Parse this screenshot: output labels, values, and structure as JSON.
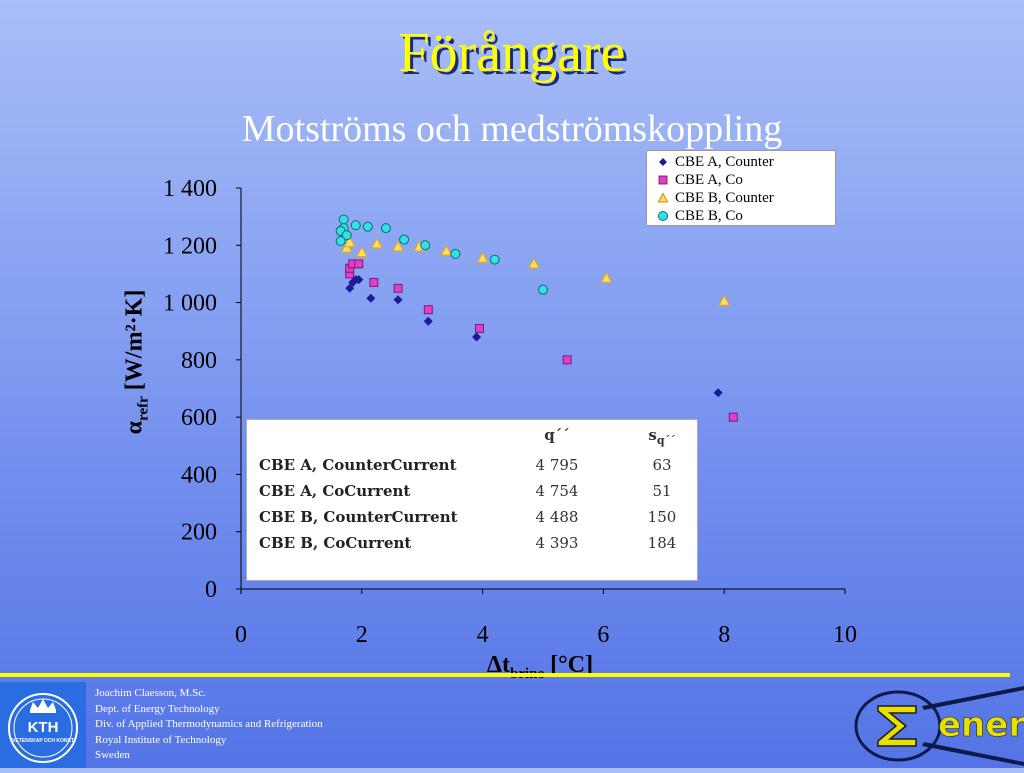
{
  "title": "Förångare",
  "subtitle": "Motströms och medströmskoppling",
  "chart_data": {
    "type": "scatter",
    "xlim": [
      0,
      10
    ],
    "ylim": [
      0,
      1400
    ],
    "xticks": [
      "0",
      "2",
      "4",
      "6",
      "8",
      "10"
    ],
    "yticks": [
      "0",
      "200",
      "400",
      "600",
      "800",
      "1 000",
      "1 200",
      "1 400"
    ],
    "xlabel_main": "Δt",
    "xlabel_sub": "brine",
    "xlabel_unit": " [°C]",
    "ylabel_main": "α",
    "ylabel_sub": "refr",
    "ylabel_unit": " [W/m²·K]",
    "legend_position": "top-right",
    "series": [
      {
        "name": "CBE A, Counter",
        "marker": "diamond",
        "color": "#1a1a9c",
        "points": [
          [
            1.8,
            1050
          ],
          [
            1.85,
            1070
          ],
          [
            1.9,
            1080
          ],
          [
            1.95,
            1080
          ],
          [
            2.15,
            1015
          ],
          [
            2.6,
            1010
          ],
          [
            3.1,
            935
          ],
          [
            3.9,
            880
          ],
          [
            5.4,
            800
          ],
          [
            7.9,
            685
          ]
        ]
      },
      {
        "name": "CBE A, Co",
        "marker": "square",
        "color": "#e040c8",
        "points": [
          [
            1.8,
            1100
          ],
          [
            1.8,
            1120
          ],
          [
            1.85,
            1135
          ],
          [
            1.95,
            1135
          ],
          [
            2.2,
            1070
          ],
          [
            2.6,
            1050
          ],
          [
            3.1,
            975
          ],
          [
            3.95,
            910
          ],
          [
            5.4,
            800
          ],
          [
            8.15,
            600
          ]
        ]
      },
      {
        "name": "CBE B, Counter",
        "marker": "triangle",
        "color": "#f2a800",
        "points": [
          [
            1.75,
            1190
          ],
          [
            1.8,
            1210
          ],
          [
            2.0,
            1175
          ],
          [
            2.25,
            1205
          ],
          [
            2.6,
            1195
          ],
          [
            2.95,
            1195
          ],
          [
            3.4,
            1180
          ],
          [
            4.0,
            1155
          ],
          [
            4.85,
            1135
          ],
          [
            6.05,
            1085
          ],
          [
            8.0,
            1005
          ]
        ]
      },
      {
        "name": "CBE B, Co",
        "marker": "circle",
        "color": "#33e0e8",
        "points": [
          [
            1.7,
            1290
          ],
          [
            1.7,
            1260
          ],
          [
            1.65,
            1250
          ],
          [
            1.75,
            1235
          ],
          [
            1.65,
            1215
          ],
          [
            1.9,
            1270
          ],
          [
            2.1,
            1265
          ],
          [
            2.4,
            1260
          ],
          [
            2.7,
            1220
          ],
          [
            3.05,
            1200
          ],
          [
            3.55,
            1170
          ],
          [
            4.2,
            1150
          ],
          [
            5.0,
            1045
          ]
        ]
      }
    ]
  },
  "stats_table": {
    "headers": {
      "q_main": "q´´",
      "s_main": "s",
      "s_sub": "q´´"
    },
    "rows": [
      {
        "name": "CBE A, CounterCurrent",
        "q": "4 795",
        "s": "63"
      },
      {
        "name": "CBE A, CoCurrent",
        "q": "4 754",
        "s": "51"
      },
      {
        "name": "CBE B, CounterCurrent",
        "q": "4 488",
        "s": "150"
      },
      {
        "name": "CBE B, CoCurrent",
        "q": "4 393",
        "s": "184"
      }
    ]
  },
  "footer": {
    "lines": [
      "Joachim Claesson, M.Sc.",
      "Dept. of Energy Technology",
      "Div. of Applied Thermodynamics and Refrigeration",
      "Royal Institute of Technology",
      "Sweden"
    ],
    "kth_logo_text": "KTH",
    "kth_logo_subtext": "VETENSKAP OCH KONST",
    "energi_text": "energi",
    "kth_color": "#2a6de0"
  }
}
